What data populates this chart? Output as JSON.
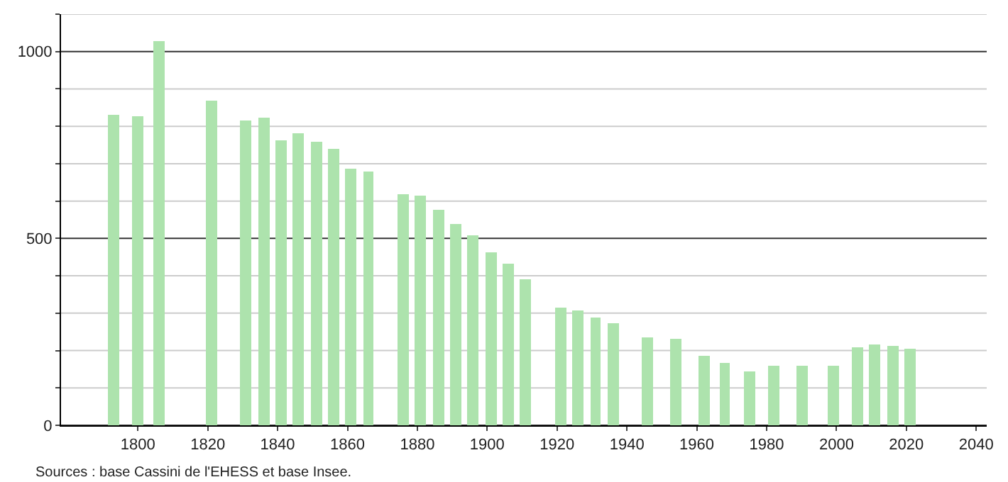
{
  "chart_data": {
    "type": "bar",
    "x": [
      1793,
      1800,
      1806,
      1821,
      1831,
      1836,
      1841,
      1846,
      1851,
      1856,
      1861,
      1866,
      1876,
      1881,
      1886,
      1891,
      1896,
      1901,
      1906,
      1911,
      1921,
      1926,
      1931,
      1936,
      1946,
      1954,
      1962,
      1968,
      1975,
      1982,
      1990,
      1999,
      2006,
      2011,
      2016,
      2021
    ],
    "values": [
      830,
      827,
      1029,
      869,
      815,
      823,
      762,
      781,
      758,
      739,
      686,
      678,
      617,
      613,
      575,
      537,
      510,
      461,
      434,
      392,
      316,
      309,
      290,
      274,
      236,
      232,
      187,
      168,
      145,
      160,
      160,
      160,
      210,
      217,
      213,
      206
    ],
    "color": "#ade3ad",
    "xlim": [
      1778,
      2043
    ],
    "xticks": [
      1800,
      1820,
      1840,
      1860,
      1880,
      1900,
      1920,
      1940,
      1960,
      1980,
      2000,
      2020,
      2040
    ],
    "ylim": [
      0,
      1100
    ],
    "yticks": [
      0,
      {
        "value": 100,
        "label": null
      },
      {
        "value": 200,
        "label": null
      },
      {
        "value": 300,
        "label": null
      },
      {
        "value": 400,
        "label": null
      },
      500,
      {
        "value": 600,
        "label": null
      },
      {
        "value": 700,
        "label": null
      },
      {
        "value": 800,
        "label": null
      },
      {
        "value": 900,
        "label": null
      },
      1000,
      {
        "value": 1100,
        "label": null
      }
    ],
    "grid": "y",
    "annotations": [
      "Sources : base Cassini de l'EHESS et base Insee."
    ]
  }
}
